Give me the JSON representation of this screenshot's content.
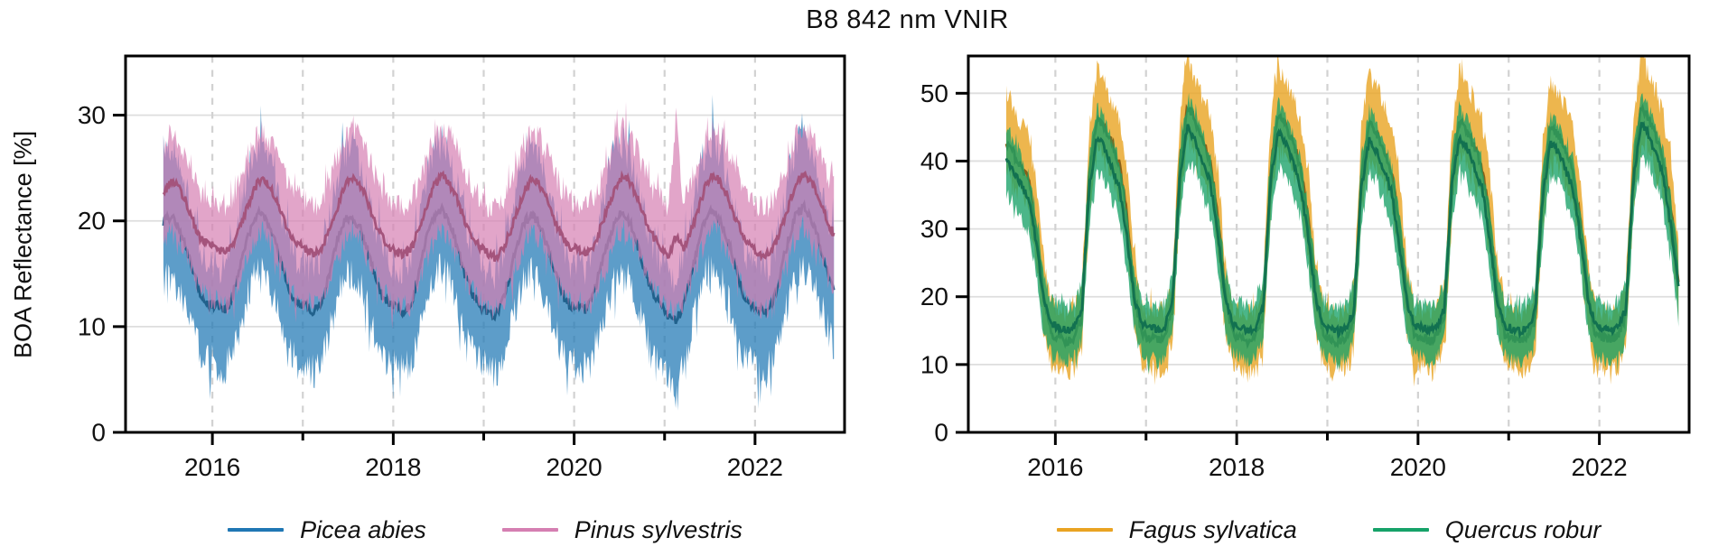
{
  "chart_data": {
    "type": "line",
    "title": "B8 842 nm VNIR",
    "ylabel": "BOA Reflectance [%]",
    "x_unit": "year",
    "grid": {
      "horizontal": "solid",
      "vertical": "dashed",
      "h_color": "#dedede",
      "v_color": "#d2d2d2"
    },
    "axis_color": "#000000",
    "panels": [
      {
        "id": "conifers",
        "xlim": [
          2015.04,
          2022.99
        ],
        "ylim": [
          0,
          35.6
        ],
        "xticks_major": [
          2016,
          2018,
          2020,
          2022
        ],
        "xticks_minor": [
          2017,
          2019,
          2021
        ],
        "grid_years": [
          2016,
          2017,
          2018,
          2019,
          2020,
          2021,
          2022
        ],
        "yticks": [
          0,
          10,
          20,
          30
        ]
      },
      {
        "id": "broadleaves",
        "xlim": [
          2015.04,
          2022.99
        ],
        "ylim": [
          0,
          55.5
        ],
        "xticks_major": [
          2016,
          2018,
          2020,
          2022
        ],
        "xticks_minor": [
          2017,
          2019,
          2021
        ],
        "grid_years": [
          2016,
          2017,
          2018,
          2019,
          2020,
          2021,
          2022
        ],
        "yticks": [
          0,
          10,
          20,
          30,
          40,
          50
        ]
      }
    ],
    "series": [
      {
        "name": "Picea abies",
        "panel": 0,
        "legend_color": "#1f77b4",
        "band_fill": "rgba(31,119,180,0.72)",
        "line_color": "#21618c",
        "start": [
          2015,
          6
        ],
        "monthly_mean": [
          20,
          20.5,
          19.5,
          17.5,
          15,
          13,
          12.2,
          12,
          11.5,
          12.5,
          15,
          18,
          20.3,
          20.8,
          19.8,
          17.5,
          15,
          13,
          12.2,
          12,
          11.3,
          12.5,
          15,
          18,
          20,
          20.5,
          19.5,
          17.5,
          15,
          13,
          12,
          11.8,
          11.2,
          12.5,
          15.5,
          18.5,
          20.5,
          21,
          20,
          17.5,
          15,
          13,
          12,
          11.5,
          11,
          12.5,
          15,
          18,
          20,
          20.5,
          19.5,
          17.5,
          15,
          13,
          12,
          12,
          11.5,
          12.8,
          15.5,
          18,
          20.3,
          20.8,
          19.8,
          17.5,
          15,
          13,
          12,
          11,
          10.5,
          12,
          15,
          18,
          20.5,
          21,
          20,
          18,
          15.5,
          13,
          12,
          11.8,
          11.3,
          12.5,
          15.5,
          18.5,
          20.8,
          21.2,
          20,
          18,
          15.5,
          13.5
        ],
        "band_lo_offset": [
          -5.5,
          -5.5,
          -5.5,
          -5.5,
          -5.5,
          -5.5,
          -5.5,
          -5.5,
          -5.5,
          -5.5,
          -5.5,
          -5.5
        ],
        "band_hi_offset": [
          4,
          4,
          4.5,
          5,
          6,
          6.5,
          6.5,
          6,
          5.5,
          5,
          4.5,
          4
        ],
        "overrides": [
          {
            "y": 2021,
            "m": 2,
            "lo": 3.5
          }
        ],
        "noise": {
          "mean": 0.45,
          "band": 1.7,
          "spikes": 30
        }
      },
      {
        "name": "Pinus sylvestris",
        "panel": 0,
        "legend_color": "#d57fb2",
        "band_fill": "rgba(213,127,178,0.7)",
        "line_color": "#a4547c",
        "start": [
          2015,
          6
        ],
        "monthly_mean": [
          22.5,
          23.8,
          23.2,
          21.8,
          19.8,
          18.3,
          17.8,
          17.5,
          17,
          17.5,
          19,
          21,
          23,
          24,
          23.3,
          22,
          20,
          18.5,
          17.8,
          17.3,
          16.8,
          17.5,
          19,
          21,
          23.2,
          24.2,
          23.5,
          22,
          20,
          18.5,
          17.5,
          17,
          16.8,
          17.5,
          19.5,
          21.5,
          23.5,
          24.3,
          23.5,
          22,
          20,
          18.5,
          17.5,
          17,
          16.5,
          17.3,
          19,
          21,
          23,
          24,
          23.3,
          21.8,
          19.8,
          18.3,
          17.5,
          17.3,
          17,
          17.5,
          19.3,
          21.3,
          23.3,
          24.2,
          23.5,
          22,
          20,
          18.5,
          17.5,
          16.8,
          16.5,
          17.3,
          19,
          21.2,
          23.4,
          24.4,
          23.6,
          22,
          20,
          18.5,
          17.5,
          17,
          16.8,
          17.5,
          19.3,
          21.5,
          23.8,
          24.5,
          23.6,
          22.2,
          20.2,
          18.6
        ],
        "band_lo_offset": [
          -5,
          -5,
          -5,
          -5,
          -5,
          -5,
          -5,
          -5,
          -5,
          -5,
          -5,
          -5
        ],
        "band_hi_offset": [
          4.5,
          4.5,
          4.5,
          4.5,
          4.5,
          4.5,
          4.5,
          4.5,
          4.5,
          4.5,
          4.5,
          4.5
        ],
        "overrides": [
          {
            "y": 2021,
            "m": 2,
            "mean": 18.5,
            "hi": 30
          }
        ],
        "noise": {
          "mean": 0.4,
          "band": 1.2,
          "spikes": 18
        }
      },
      {
        "name": "Fagus sylvatica",
        "panel": 1,
        "legend_color": "#e9a322",
        "band_fill": "rgba(233,164,34,0.8)",
        "line_color": "#8a6018",
        "start": [
          2015,
          6
        ],
        "monthly_mean": [
          43,
          41,
          39,
          37,
          30,
          20,
          14.5,
          14,
          13.5,
          14,
          17,
          38,
          46.5,
          45,
          42.5,
          39.5,
          32,
          20,
          14.5,
          14,
          13.5,
          14.5,
          18,
          40,
          48,
          46,
          43,
          40,
          32,
          20,
          14.5,
          14,
          13.5,
          14,
          17.5,
          39,
          47,
          45.5,
          42.5,
          39,
          31,
          20,
          14.5,
          13.8,
          13.3,
          14,
          17,
          38,
          45.5,
          44,
          41.5,
          38.5,
          31,
          20,
          14.2,
          14,
          13.5,
          14.2,
          17.5,
          38.5,
          46,
          44.5,
          42,
          39,
          31.5,
          20,
          14.3,
          13.8,
          13.4,
          14,
          16.5,
          36,
          45,
          44,
          41.5,
          38.5,
          31,
          20,
          14.3,
          14,
          13.6,
          14.2,
          17.5,
          39,
          48,
          46.5,
          43.5,
          40,
          33,
          22
        ],
        "band_lo_offset": [
          -4.5,
          -4.5,
          -4.5,
          -4.5,
          -6,
          -5,
          -4.5,
          -4.5,
          -4.5,
          -5,
          -5,
          -4.5
        ],
        "band_hi_offset": [
          4,
          4,
          4,
          4.5,
          6.5,
          7,
          6.5,
          6.5,
          6.5,
          6.5,
          5,
          4
        ],
        "overrides": [],
        "noise": {
          "mean": 0.7,
          "band": 1.6,
          "spikes": 22
        }
      },
      {
        "name": "Quercus robur",
        "panel": 1,
        "legend_color": "#16a269",
        "band_fill": "rgba(24,162,104,0.78)",
        "line_color": "#127150",
        "start": [
          2015,
          6
        ],
        "monthly_mean": [
          40,
          38.5,
          36.5,
          34,
          28,
          19,
          16,
          15.5,
          15,
          15.5,
          18,
          36,
          43.5,
          42,
          39,
          36,
          28.5,
          19.5,
          16,
          15.5,
          15,
          15.8,
          19,
          38,
          45,
          43,
          40,
          37,
          29,
          19.5,
          16,
          15.5,
          15,
          15.5,
          18.5,
          37,
          44.5,
          42.5,
          39.5,
          36,
          28.5,
          19.5,
          15.8,
          15.3,
          14.8,
          15.5,
          18,
          36,
          43,
          41.5,
          38.5,
          35.5,
          28,
          19.3,
          15.8,
          15.5,
          15,
          15.6,
          18.2,
          36.5,
          43.5,
          42,
          39,
          36,
          28.5,
          19.5,
          15.8,
          15.2,
          14.9,
          15.5,
          17.8,
          34.5,
          42.5,
          41.5,
          38.8,
          36,
          28.5,
          19.5,
          15.8,
          15.4,
          15,
          15.6,
          18.2,
          37,
          45.5,
          44,
          41,
          37.5,
          30,
          21
        ],
        "band_lo_offset": [
          -4.5,
          -4.5,
          -4.5,
          -4.5,
          -5.5,
          -5,
          -4.5,
          -4.5,
          -4.5,
          -4.5,
          -4.5,
          -4.5
        ],
        "band_hi_offset": [
          3.5,
          3.5,
          3.5,
          4,
          4.5,
          4.5,
          4,
          4,
          4,
          4,
          4,
          3.5
        ],
        "overrides": [],
        "noise": {
          "mean": 0.6,
          "band": 1.2,
          "spikes": 14
        }
      }
    ],
    "legend_panels": [
      {
        "items": [
          0,
          1
        ]
      },
      {
        "items": [
          2,
          3
        ]
      }
    ]
  }
}
